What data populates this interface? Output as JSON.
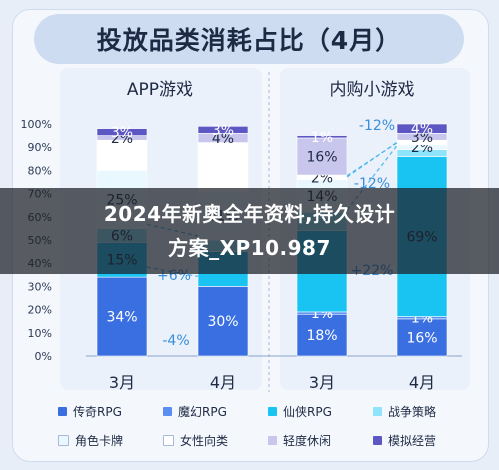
{
  "title": "投放品类消耗占比（4月）",
  "overlay": {
    "line1": "2024年新奥全年资料,持久设计",
    "line2": "方案_XP10.987"
  },
  "chart_data": {
    "type": "bar",
    "stacked": true,
    "categories": [
      "3月",
      "4月",
      "3月",
      "4月"
    ],
    "groups": [
      {
        "label": "APP游戏",
        "categories": [
          "3月",
          "4月"
        ]
      },
      {
        "label": "内购小游戏",
        "categories": [
          "3月",
          "4月"
        ]
      }
    ],
    "ylim": [
      0,
      100
    ],
    "yticks": [
      "0%",
      "10%",
      "20%",
      "30%",
      "40%",
      "50%",
      "60%",
      "70%",
      "80%",
      "90%",
      "100%"
    ],
    "series": [
      {
        "name": "传奇RPG",
        "color": "#3a6fe2",
        "values": [
          34,
          30,
          18,
          16
        ],
        "labels": [
          "34%",
          "30%",
          "18%",
          "16%"
        ]
      },
      {
        "name": "魔幻RPG",
        "color": "#5a8ff2",
        "values": [
          0,
          0,
          1,
          1
        ],
        "labels": [
          "",
          "",
          "1%",
          "1%"
        ]
      },
      {
        "name": "仙侠RPG",
        "color": "#19c3f2",
        "values": [
          15,
          15,
          35,
          69
        ],
        "labels": [
          "15%",
          "",
          "",
          "69%"
        ]
      },
      {
        "name": "战争策略",
        "color": "#8ee4fb",
        "values": [
          6,
          5,
          8,
          3
        ],
        "labels": [
          "6%",
          "",
          "",
          ""
        ]
      },
      {
        "name": "角色卡牌",
        "color": "#e9f8fe",
        "values": [
          25,
          21,
          14,
          2
        ],
        "labels": [
          "25%",
          "21%",
          "14%",
          "2%"
        ]
      },
      {
        "name": "女性向类",
        "color": "#ffffff",
        "values": [
          13,
          21,
          2,
          2
        ],
        "labels": [
          "",
          "",
          "2%",
          ""
        ]
      },
      {
        "name": "轻度休闲",
        "color": "#c9c6ee",
        "values": [
          2,
          4,
          16,
          3
        ],
        "labels": [
          "2%",
          "4%",
          "16%",
          "3%"
        ]
      },
      {
        "name": "模拟经营",
        "color": "#5d57c4",
        "values": [
          3,
          3,
          1,
          4
        ],
        "labels": [
          "3%",
          "3%",
          "1%",
          "4%"
        ]
      }
    ],
    "annotations": [
      "-4%",
      "+6%",
      "+22%",
      "-12%",
      "-12%"
    ]
  }
}
